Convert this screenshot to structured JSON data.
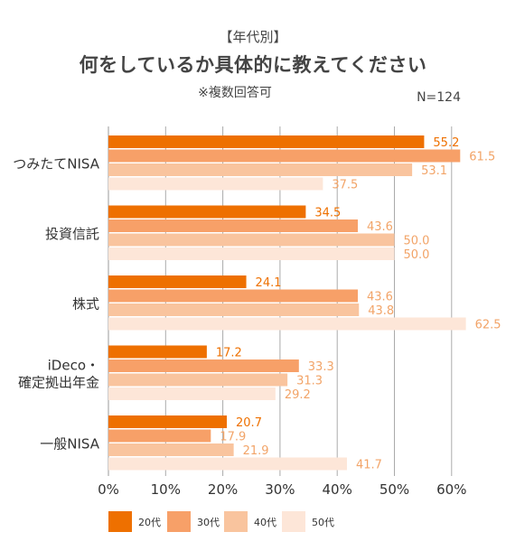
{
  "header": {
    "tag": "【年代別】",
    "title": "何をしているか具体的に教えてください",
    "note": "※複数回答可",
    "n": "N=124"
  },
  "colors": {
    "20代": "#ee7000",
    "30代": "#f7a068",
    "40代": "#f9c49e",
    "50代": "#fde6d8",
    "label_dark": "#ee7000",
    "label_light": "#f2a468",
    "grid": "#aaaaaa"
  },
  "chart_data": {
    "type": "bar",
    "orientation": "horizontal",
    "title": "何をしているか具体的に教えてください",
    "categories": [
      "つみたてNISA",
      "投資信託",
      "株式",
      "iDeco・確定拠出年金",
      "一般NISA"
    ],
    "category_lines": [
      [
        "つみたてNISA"
      ],
      [
        "投資信託"
      ],
      [
        "株式"
      ],
      [
        "iDeco・",
        "確定拠出年金"
      ],
      [
        "一般NISA"
      ]
    ],
    "series": [
      {
        "name": "20代",
        "values": [
          55.2,
          34.5,
          24.1,
          17.2,
          20.7
        ]
      },
      {
        "name": "30代",
        "values": [
          61.5,
          43.6,
          43.6,
          33.3,
          17.9
        ]
      },
      {
        "name": "40代",
        "values": [
          53.1,
          50.0,
          43.8,
          31.3,
          21.9
        ]
      },
      {
        "name": "50代",
        "values": [
          37.5,
          50.0,
          62.5,
          29.2,
          41.7
        ]
      }
    ],
    "value_labels": [
      [
        "55.2",
        "34.5",
        "24.1",
        "17.2",
        "20.7"
      ],
      [
        "61.5",
        "43.6",
        "43.6",
        "33.3",
        "17.9"
      ],
      [
        "53.1",
        "50.0",
        "43.8",
        "31.3",
        "21.9"
      ],
      [
        "37.5",
        "50.0",
        "62.5",
        "29.2",
        "41.7"
      ]
    ],
    "xlim": [
      0,
      60
    ],
    "xticks": [
      "0%",
      "10%",
      "20%",
      "30%",
      "40%",
      "50%",
      "60%"
    ],
    "grid": true,
    "legend_position": "bottom"
  }
}
